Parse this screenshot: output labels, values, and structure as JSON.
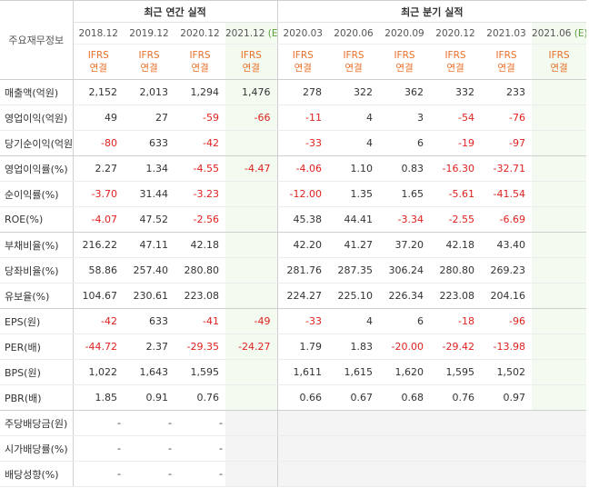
{
  "corner_label": "주요재무정보",
  "groups": {
    "annual": "최근 연간 실적",
    "quarterly": "최근 분기 실적"
  },
  "annual_dates": [
    "2018.12",
    "2019.12",
    "2020.12"
  ],
  "annual_est": {
    "date": "2021.12",
    "tag": "(E)"
  },
  "quarter_dates": [
    "2020.03",
    "2020.06",
    "2020.09",
    "2020.12",
    "2021.03"
  ],
  "quarter_est": {
    "date": "2021.06",
    "tag": "(E)"
  },
  "ifrs": {
    "top": "IFRS",
    "bottom": "연결"
  },
  "rows": [
    {
      "label": "매출액(억원)",
      "values": [
        "2,152",
        "2,013",
        "1,294",
        "1,476",
        "278",
        "322",
        "362",
        "332",
        "233",
        ""
      ]
    },
    {
      "label": "영업이익(억원)",
      "values": [
        "49",
        "27",
        "-59",
        "-66",
        "-11",
        "4",
        "3",
        "-54",
        "-76",
        ""
      ]
    },
    {
      "label": "당기순이익(억원)",
      "values": [
        "-80",
        "633",
        "-42",
        "",
        "-33",
        "4",
        "6",
        "-19",
        "-97",
        ""
      ]
    },
    {
      "label": "영업이익률(%)",
      "values": [
        "2.27",
        "1.34",
        "-4.55",
        "-4.47",
        "-4.06",
        "1.10",
        "0.83",
        "-16.30",
        "-32.71",
        ""
      ]
    },
    {
      "label": "순이익률(%)",
      "values": [
        "-3.70",
        "31.44",
        "-3.23",
        "",
        "-12.00",
        "1.35",
        "1.65",
        "-5.61",
        "-41.54",
        ""
      ]
    },
    {
      "label": "ROE(%)",
      "values": [
        "-4.07",
        "47.52",
        "-2.56",
        "",
        "45.38",
        "44.41",
        "-3.34",
        "-2.55",
        "-6.69",
        ""
      ]
    },
    {
      "label": "부채비율(%)",
      "values": [
        "216.22",
        "47.11",
        "42.18",
        "",
        "42.20",
        "41.27",
        "37.20",
        "42.18",
        "43.40",
        ""
      ]
    },
    {
      "label": "당좌비율(%)",
      "values": [
        "58.86",
        "257.40",
        "280.80",
        "",
        "281.76",
        "287.35",
        "306.24",
        "280.80",
        "269.23",
        ""
      ]
    },
    {
      "label": "유보율(%)",
      "values": [
        "104.67",
        "230.61",
        "223.08",
        "",
        "224.27",
        "225.10",
        "226.34",
        "223.08",
        "204.16",
        ""
      ]
    },
    {
      "label": "EPS(원)",
      "values": [
        "-42",
        "633",
        "-41",
        "-49",
        "-33",
        "4",
        "6",
        "-18",
        "-96",
        ""
      ]
    },
    {
      "label": "PER(배)",
      "values": [
        "-44.72",
        "2.37",
        "-29.35",
        "-24.27",
        "1.79",
        "1.83",
        "-20.00",
        "-29.42",
        "-13.98",
        ""
      ]
    },
    {
      "label": "BPS(원)",
      "values": [
        "1,022",
        "1,643",
        "1,595",
        "",
        "1,611",
        "1,615",
        "1,620",
        "1,595",
        "1,502",
        ""
      ]
    },
    {
      "label": "PBR(배)",
      "values": [
        "1.85",
        "0.91",
        "0.76",
        "",
        "0.66",
        "0.67",
        "0.68",
        "0.76",
        "0.97",
        ""
      ]
    },
    {
      "label": "주당배당금(원)",
      "values": [
        "-",
        "-",
        "-",
        "",
        "",
        "",
        "",
        "",
        "",
        ""
      ]
    },
    {
      "label": "시가배당률(%)",
      "values": [
        "-",
        "-",
        "-",
        "",
        "",
        "",
        "",
        "",
        "",
        ""
      ]
    },
    {
      "label": "배당성향(%)",
      "values": [
        "-",
        "-",
        "-",
        "",
        "",
        "",
        "",
        "",
        "",
        ""
      ]
    }
  ],
  "colors": {
    "negative": "#e0221f",
    "ifrs": "#e8702a",
    "estimate": "#5a9e3a",
    "estimate_bg": "#f3faf0",
    "no_data_bg": "#f4f4f4"
  }
}
